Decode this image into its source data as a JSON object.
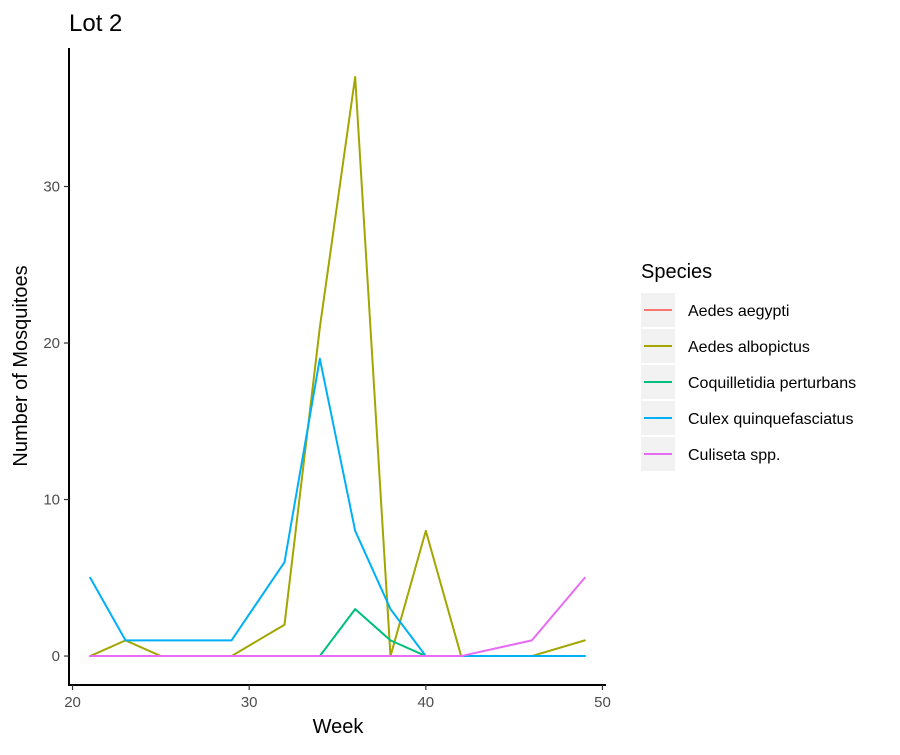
{
  "chart_data": {
    "type": "line",
    "title": "Lot 2",
    "xlabel": "Week",
    "ylabel": "Number of Mosquitoes",
    "xlim": [
      19.8,
      50.2
    ],
    "ylim": [
      -1.85,
      38.85
    ],
    "xticks": [
      20,
      30,
      40,
      50
    ],
    "yticks": [
      0,
      10,
      20,
      30
    ],
    "grid": false,
    "legend_title": "Species",
    "legend_position": "right",
    "series": [
      {
        "name": "Aedes aegypti",
        "color": "#F8766D",
        "x": [
          21,
          23,
          25,
          29,
          32,
          34,
          36,
          38,
          40,
          42,
          46,
          49
        ],
        "y": [
          0,
          0,
          0,
          0,
          0,
          0,
          0,
          0,
          0,
          0,
          0,
          0
        ]
      },
      {
        "name": "Aedes albopictus",
        "color": "#A3A500",
        "x": [
          21,
          23,
          25,
          29,
          32,
          34,
          36,
          38,
          40,
          42,
          46,
          49
        ],
        "y": [
          0,
          1,
          0,
          0,
          2,
          21,
          37,
          0,
          8,
          0,
          0,
          1
        ]
      },
      {
        "name": "Coquilletidia perturbans",
        "color": "#00BF7D",
        "x": [
          21,
          23,
          25,
          29,
          32,
          34,
          36,
          38,
          40,
          42,
          46,
          49
        ],
        "y": [
          0,
          0,
          0,
          0,
          0,
          0,
          3,
          1,
          0,
          0,
          0,
          0
        ]
      },
      {
        "name": "Culex quinquefasciatus",
        "color": "#00B0F6",
        "x": [
          21,
          23,
          25,
          29,
          32,
          34,
          36,
          38,
          40,
          42,
          46,
          49
        ],
        "y": [
          5,
          1,
          1,
          1,
          6,
          19,
          8,
          3,
          0,
          0,
          0,
          0
        ]
      },
      {
        "name": "Culiseta spp.",
        "color": "#E76BF3",
        "x": [
          21,
          23,
          25,
          29,
          32,
          34,
          36,
          38,
          40,
          42,
          46,
          49
        ],
        "y": [
          0,
          0,
          0,
          0,
          0,
          0,
          0,
          0,
          0,
          0,
          1,
          5
        ]
      }
    ]
  }
}
